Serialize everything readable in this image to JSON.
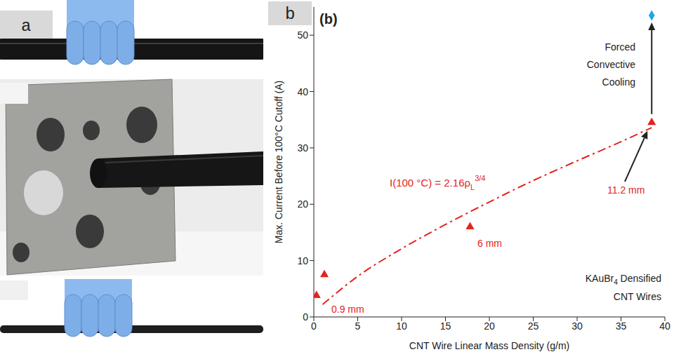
{
  "panel_labels": [
    "a",
    "b"
  ],
  "chart_data": {
    "type": "scatter",
    "title": "(b)",
    "x_label": "CNT Wire Linear Mass Density (g/m)",
    "y_label": "Max. Current Before 100°C Cutoff (A)",
    "xlim": [
      0,
      40
    ],
    "xticks": [
      0,
      5,
      10,
      15,
      20,
      25,
      30,
      35,
      40
    ],
    "ylim": [
      0,
      55
    ],
    "yticks": [
      0,
      10,
      20,
      30,
      40,
      50
    ],
    "grid": false,
    "series": [
      {
        "type": "scatter",
        "marker": "triangle",
        "color": "#e3231f",
        "x": [
          0.3,
          1.2,
          17.8,
          38.5
        ],
        "values": [
          3.8,
          7.5,
          16,
          34.5
        ]
      },
      {
        "type": "scatter",
        "marker": "diamond",
        "color": "#1ea7e1",
        "x": [
          38.5
        ],
        "values": [
          53.5
        ]
      },
      {
        "type": "line",
        "line_style": "dashdot",
        "color": "#e3231f",
        "x": [
          1,
          5,
          10,
          15,
          20,
          25,
          30,
          35,
          38.5
        ],
        "values": [
          2.2,
          7.2,
          12.1,
          16.4,
          20.4,
          24.2,
          27.7,
          31.1,
          33.6
        ]
      }
    ],
    "annotations": {
      "fit": {
        "text": "I(100 °C) = 2.16ρ",
        "subscript": "L",
        "superscript": "3/4"
      },
      "cooling": [
        "Forced",
        "Convective",
        "Cooling"
      ],
      "diameters": [
        "0.9 mm",
        "6 mm",
        "11.2 mm"
      ],
      "material": [
        {
          "text": "KAuBr",
          "subscript": "4",
          "rest": " Densified"
        },
        {
          "text": "CNT Wires"
        }
      ]
    }
  }
}
